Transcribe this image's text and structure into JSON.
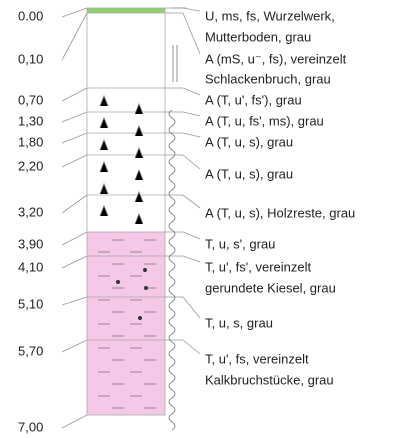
{
  "depths": [
    "0.00",
    "0,10",
    "0,70",
    "1,30",
    "1,80",
    "2,20",
    "3,20",
    "3,90",
    "4,10",
    "5,10",
    "5,70",
    "7,00"
  ],
  "layers": [
    {
      "lines": [
        "U, ms, fs, Wurzelwerk,",
        "Mutterboden, grau"
      ]
    },
    {
      "lines": [
        "A (mS, u⁻, fs), vereinzelt",
        "Schlackenbruch, grau"
      ]
    },
    {
      "lines": [
        "A (T, u', fs'), grau"
      ]
    },
    {
      "lines": [
        "A (T, u, fs', ms), grau"
      ]
    },
    {
      "lines": [
        "A (T, u, s), grau"
      ]
    },
    {
      "lines": [
        "A (T, u, s), grau"
      ]
    },
    {
      "lines": [
        "A (T, u, s), Holzreste, grau"
      ]
    },
    {
      "lines": [
        "T, u, s', grau"
      ]
    },
    {
      "lines": [
        "T, u', fs', vereinzelt",
        "gerundete Kiesel, grau"
      ]
    },
    {
      "lines": [
        "T, u, s, grau"
      ]
    },
    {
      "lines": [
        "T, u', fs, vereinzelt",
        "Kalkbruchstücke, grau"
      ]
    }
  ]
}
